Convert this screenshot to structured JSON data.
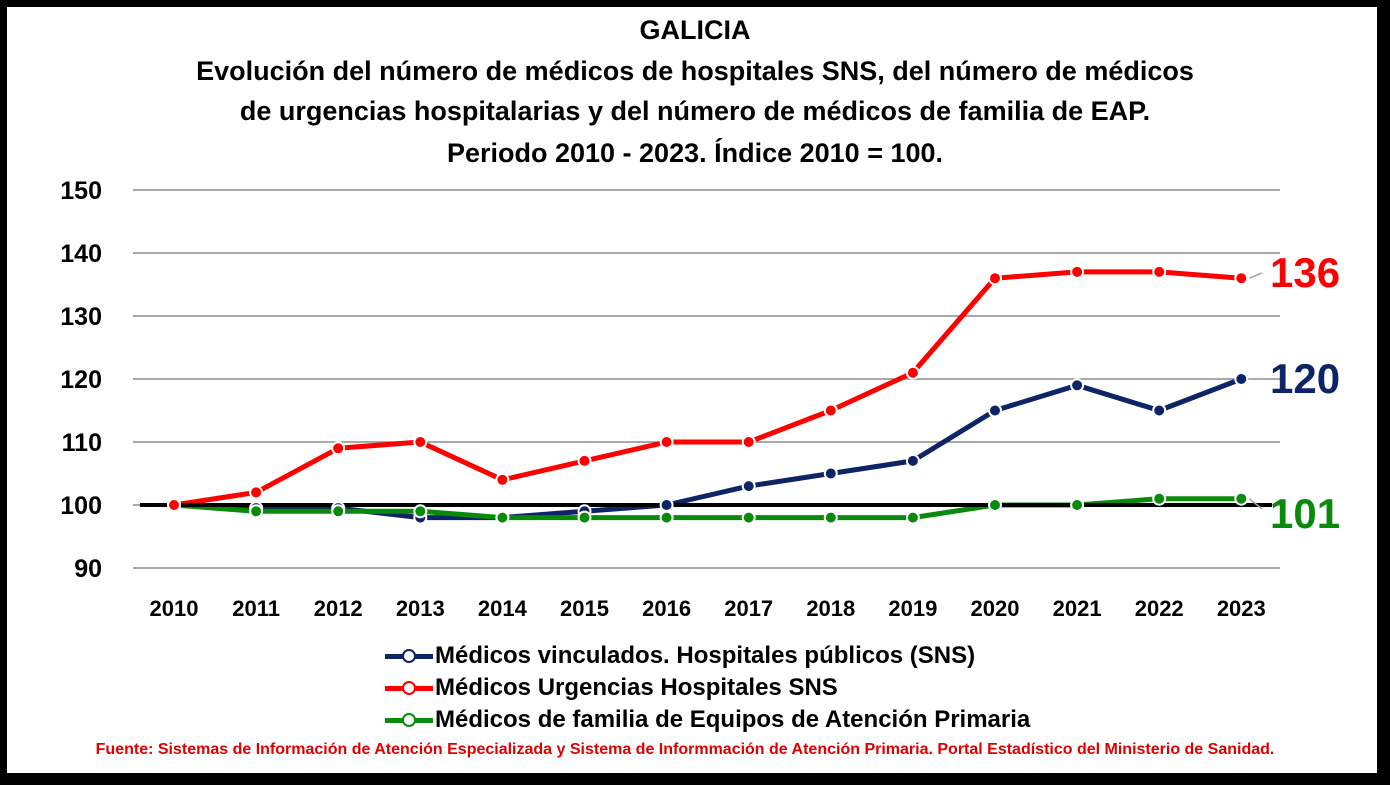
{
  "title_lines": [
    "GALICIA",
    "Evolución del número de médicos de hospitales SNS,  del número de médicos",
    "de urgencias hospitalarias  y del número de médicos de familia de EAP.",
    "Periodo 2010 - 2023. Índice 2010 = 100."
  ],
  "source": "Fuente: Sistemas de Información de Atención Especializada y Sistema de Informmación de Atención Primaria. Portal Estadístico del Ministerio de Sanidad.",
  "chart_data": {
    "type": "line",
    "categories": [
      "2010",
      "2011",
      "2012",
      "2013",
      "2014",
      "2015",
      "2016",
      "2017",
      "2018",
      "2019",
      "2020",
      "2021",
      "2022",
      "2023"
    ],
    "ylim": [
      90,
      150
    ],
    "yticks": [
      "90",
      "100",
      "110",
      "120",
      "130",
      "140",
      "150"
    ],
    "reference_line": 100,
    "grid": true,
    "legend_position": "bottom",
    "series": [
      {
        "name": "Médicos vinculados. Hospitales públicos (SNS)",
        "color": "#0d2466",
        "values": [
          100,
          99.5,
          99.5,
          98,
          98,
          99,
          100,
          103,
          105,
          107,
          115,
          119,
          115,
          120
        ],
        "end_label": "120"
      },
      {
        "name": "Médicos Urgencias Hospitales SNS",
        "color": "#ff0000",
        "values": [
          100,
          102,
          109,
          110,
          104,
          107,
          110,
          110,
          115,
          121,
          136,
          137,
          137,
          136
        ],
        "end_label": "136"
      },
      {
        "name": "Médicos de familia de Equipos de Atención Primaria",
        "color": "#0a8a0a",
        "values": [
          100,
          99,
          99,
          99,
          98,
          98,
          98,
          98,
          98,
          98,
          100,
          100,
          101,
          101
        ],
        "end_label": "101"
      }
    ]
  }
}
